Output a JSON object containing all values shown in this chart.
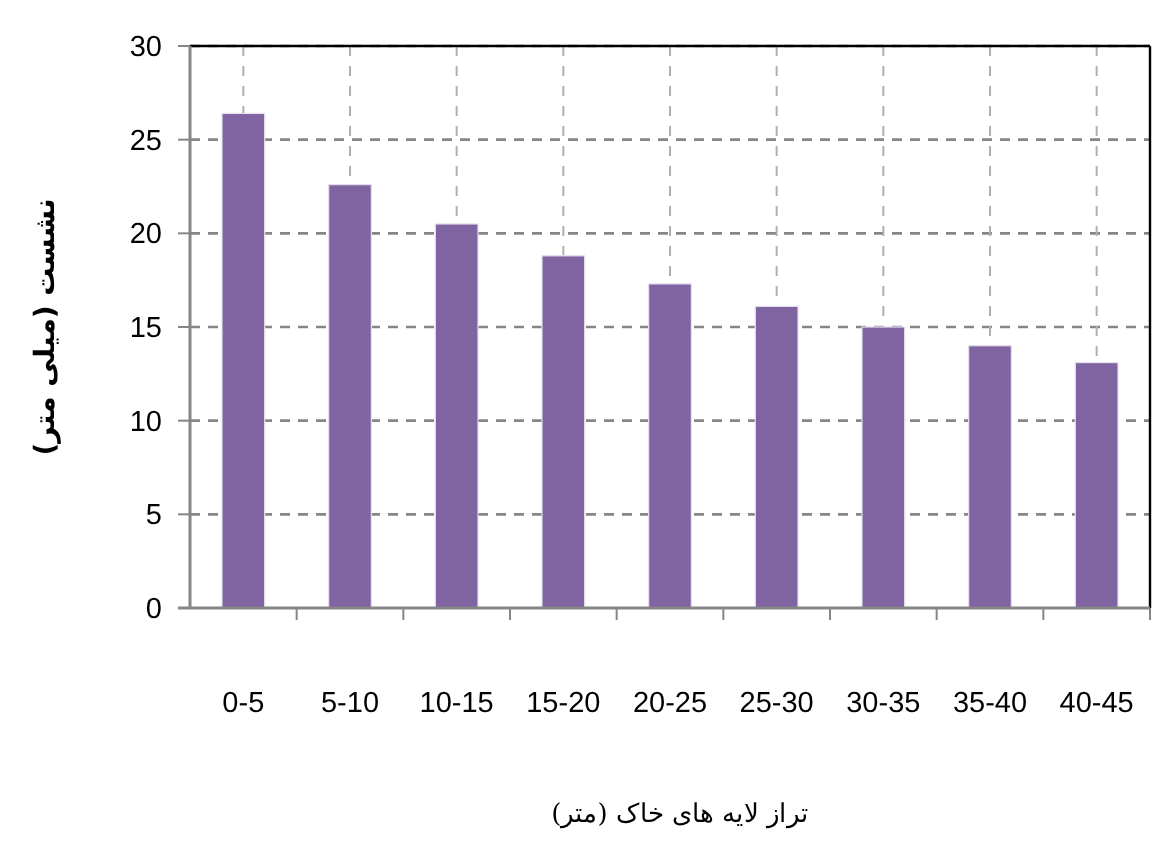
{
  "chart_data": {
    "type": "bar",
    "xlabel": "تراز لایه های خاک (متر)",
    "ylabel": "نشست (میلی متر)",
    "categories": [
      "0-5",
      "5-10",
      "10-15",
      "15-20",
      "20-25",
      "25-30",
      "30-35",
      "35-40",
      "40-45"
    ],
    "values": [
      26.4,
      22.6,
      20.5,
      18.8,
      17.3,
      16.1,
      15.0,
      14.0,
      13.1
    ],
    "color": "#8064a2",
    "ylim": [
      0,
      30
    ],
    "yticks": [
      0,
      5,
      10,
      15,
      20,
      25,
      30
    ],
    "grid": true
  }
}
